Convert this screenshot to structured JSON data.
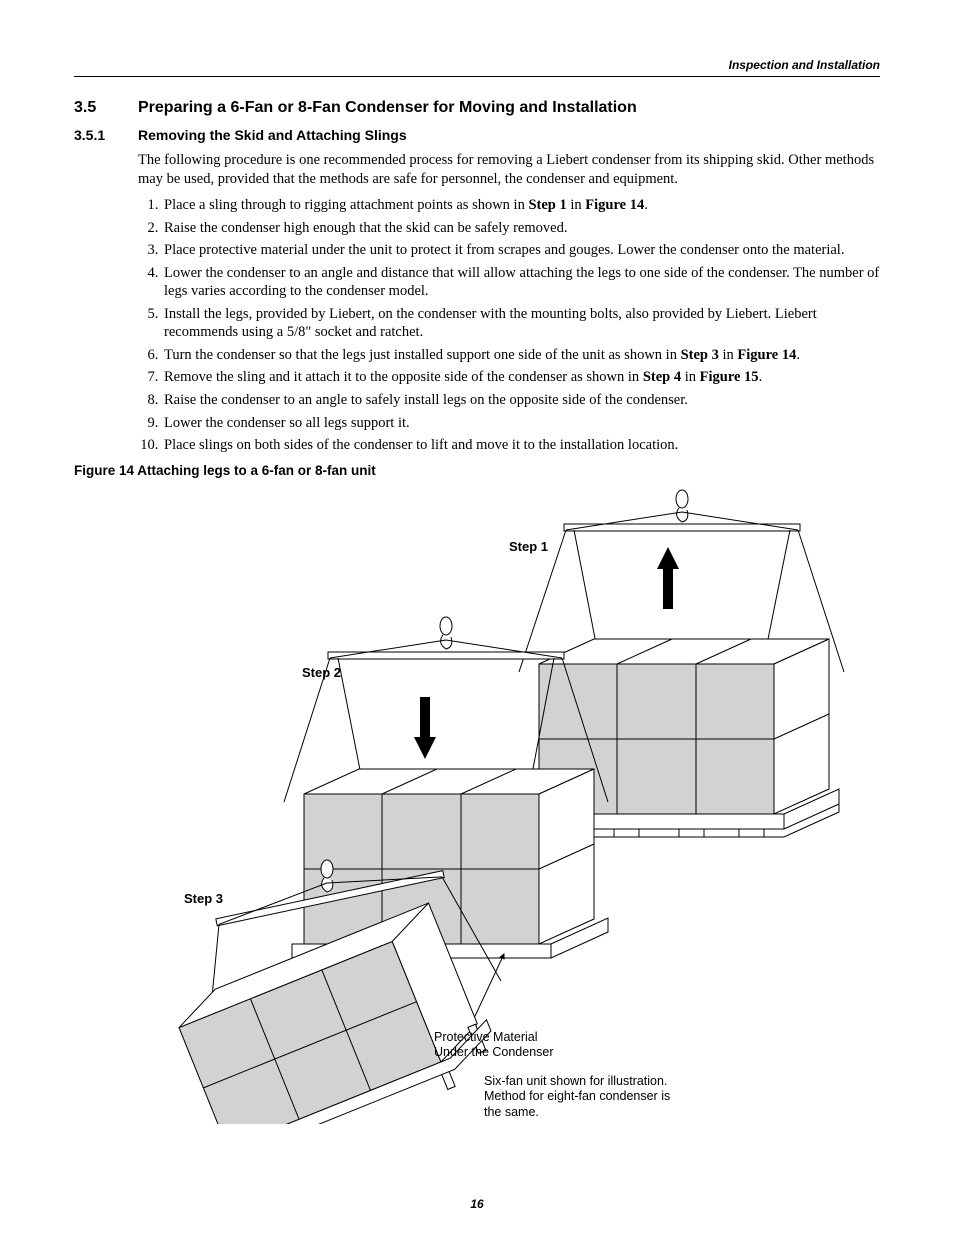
{
  "running_head": "Inspection and Installation",
  "section": {
    "number": "3.5",
    "title": "Preparing a 6-Fan or 8-Fan Condenser for Moving and Installation"
  },
  "subsection": {
    "number": "3.5.1",
    "title": "Removing the Skid and Attaching Slings",
    "intro": "The following procedure is one recommended process for removing a Liebert condenser from its shipping skid. Other methods may be used, provided that the methods are safe for personnel, the condenser and equipment.",
    "steps": [
      {
        "pre": "Place a sling through to rigging attachment points as shown in ",
        "b1": "Step 1",
        "mid": " in ",
        "b2": "Figure 14",
        "post": "."
      },
      {
        "pre": "Raise the condenser high enough that the skid can be safely removed."
      },
      {
        "pre": "Place protective material under the unit to protect it from scrapes and gouges. Lower the condenser onto the material."
      },
      {
        "pre": "Lower the condenser to an angle and distance that will allow attaching the legs to one side of the condenser. The number of legs varies according to the condenser model."
      },
      {
        "pre": "Install the legs, provided by Liebert, on the condenser with the mounting bolts, also provided by Liebert. Liebert recommends using a 5/8\" socket and ratchet."
      },
      {
        "pre": "Turn the condenser so that the legs just installed support one side of the unit as shown in ",
        "b1": "Step 3",
        "mid": " in ",
        "b2": "Figure 14",
        "post": "."
      },
      {
        "pre": "Remove the sling and it attach it to the opposite side of the condenser as shown in ",
        "b1": "Step 4",
        "mid": " in ",
        "b2": "Figure 15",
        "post": "."
      },
      {
        "pre": "Raise the condenser to an angle to safely install legs on the opposite side of the condenser."
      },
      {
        "pre": "Lower the condenser so all legs support it."
      },
      {
        "pre": "Place slings on both sides of the condenser to lift and move it to the installation location."
      }
    ]
  },
  "figure": {
    "caption": "Figure 14  Attaching legs to a 6-fan or 8-fan unit",
    "labels": {
      "step1": "Step 1",
      "step2": "Step 2",
      "step3": "Step 3"
    },
    "callout_line1": "Protective Material",
    "callout_line2": "Under the Condenser",
    "note_line1": "Six-fan unit shown for illustration.",
    "note_line2": "Method for eight-fan condenser is",
    "note_line3": "the same.",
    "colors": {
      "stroke": "#000000",
      "panel_fill": "#d2d2d2",
      "white": "#ffffff"
    }
  },
  "page_number": "16"
}
